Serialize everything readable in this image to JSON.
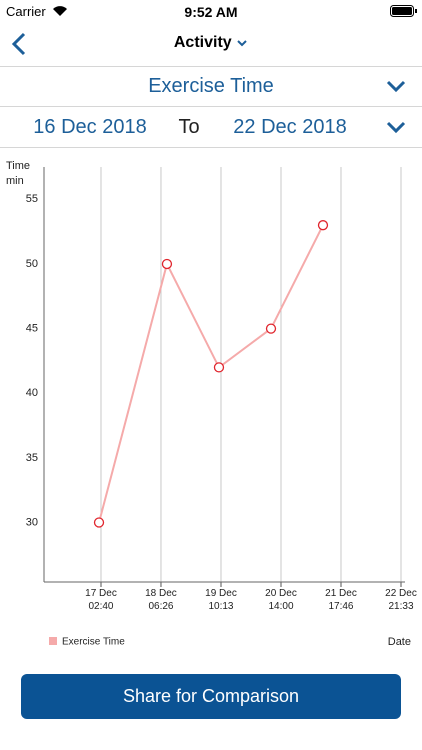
{
  "status_bar": {
    "carrier": "Carrier",
    "time": "9:52 AM"
  },
  "nav": {
    "title": "Activity"
  },
  "metric_selector": {
    "label": "Exercise Time"
  },
  "date_range": {
    "start": "16 Dec 2018",
    "separator": "To",
    "end": "22 Dec 2018"
  },
  "chart_data": {
    "type": "line",
    "y_label": "Time",
    "y_unit": "min",
    "x_label": "Date",
    "x": [
      "17 Dec 01:45",
      "18 Dec 09:12",
      "19 Dec 09:17",
      "20 Dec 09:22",
      "21 Dec 09:26"
    ],
    "series": [
      {
        "name": "Exercise Time",
        "color": "#f5aaaa",
        "marker_color": "#e0242c",
        "values": [
          30,
          50,
          42,
          45,
          53
        ]
      }
    ],
    "xlim": [
      "16 Dec 00:17",
      "22 Dec 23:24"
    ],
    "xticks": [
      "17 Dec 02:40",
      "18 Dec 06:26",
      "19 Dec 10:13",
      "20 Dec 14:00",
      "21 Dec 17:46",
      "22 Dec 21:33"
    ],
    "ylim": [
      25.4,
      57.5
    ],
    "yticks": [
      30,
      35,
      40,
      45,
      50,
      55
    ],
    "grid_x": true,
    "legend": "bottom-left"
  },
  "button": {
    "label": "Share for Comparison"
  }
}
